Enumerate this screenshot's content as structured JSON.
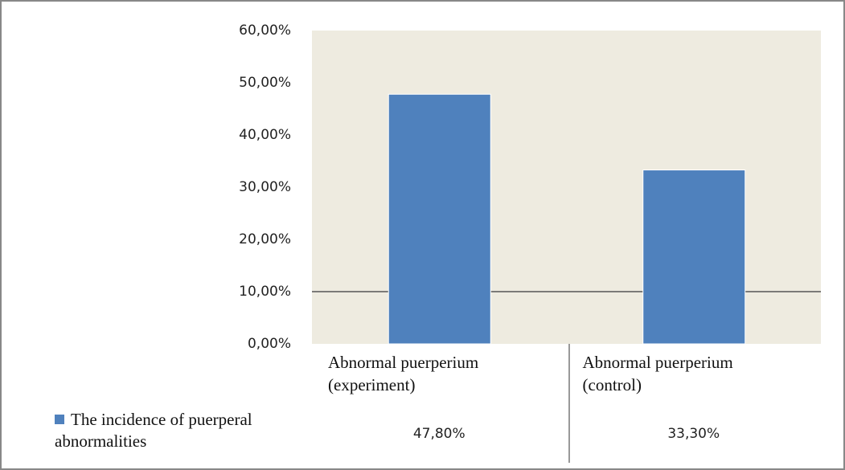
{
  "chart_data": {
    "type": "bar",
    "categories": [
      "Abnormal puerperium (experiment)",
      "Abnormal puerperium (control)"
    ],
    "series": [
      {
        "name": "The incidence of puerperal abnormalities",
        "color": "#4f81bd",
        "values": [
          47.8,
          33.3
        ],
        "value_labels": [
          "47,80%",
          "33,30%"
        ]
      }
    ],
    "ylim": [
      0,
      60
    ],
    "yticks": [
      {
        "value": 0,
        "label": "0,00%"
      },
      {
        "value": 10,
        "label": "10,00%"
      },
      {
        "value": 20,
        "label": "20,00%"
      },
      {
        "value": 30,
        "label": "30,00%"
      },
      {
        "value": 40,
        "label": "40,00%"
      },
      {
        "value": 50,
        "label": "50,00%"
      },
      {
        "value": 60,
        "label": "60,00%"
      }
    ],
    "reference_line": 10,
    "plot_background": "#eeebe0"
  }
}
